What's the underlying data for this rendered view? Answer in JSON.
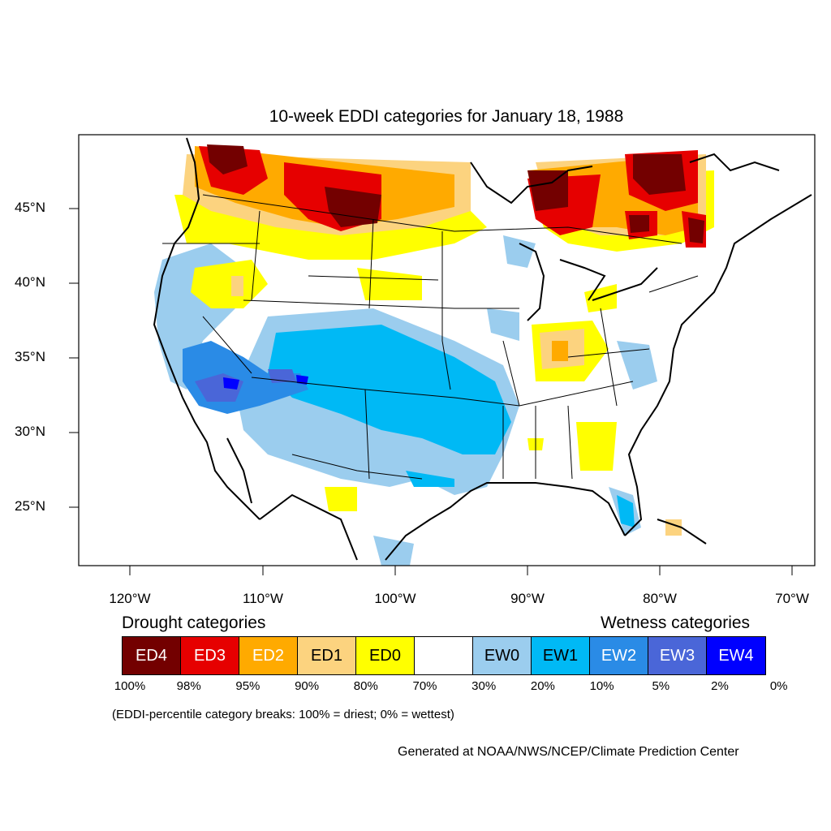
{
  "title": "10-week EDDI categories for January 18, 1988",
  "lat_labels": [
    "45°N",
    "40°N",
    "35°N",
    "30°N",
    "25°N"
  ],
  "lon_labels": [
    "120°W",
    "110°W",
    "100°W",
    "90°W",
    "80°W",
    "70°W"
  ],
  "legend": {
    "drought_heading": "Drought categories",
    "wetness_heading": "Wetness categories",
    "categories": [
      {
        "label": "ED4",
        "color": "#730000",
        "text_color": "#ffffff"
      },
      {
        "label": "ED3",
        "color": "#e60000",
        "text_color": "#ffffff"
      },
      {
        "label": "ED2",
        "color": "#ffaa00",
        "text_color": "#ffffff"
      },
      {
        "label": "ED1",
        "color": "#fcd37f",
        "text_color": "#000000"
      },
      {
        "label": "ED0",
        "color": "#ffff00",
        "text_color": "#000000"
      },
      {
        "label": "",
        "color": "#ffffff",
        "text_color": "#000000"
      },
      {
        "label": "EW0",
        "color": "#9bcdee",
        "text_color": "#000000"
      },
      {
        "label": "EW1",
        "color": "#00b9f5",
        "text_color": "#000000"
      },
      {
        "label": "EW2",
        "color": "#2a8be6",
        "text_color": "#ffffff"
      },
      {
        "label": "EW3",
        "color": "#4a66d8",
        "text_color": "#ffffff"
      },
      {
        "label": "EW4",
        "color": "#0000ff",
        "text_color": "#ffffff"
      }
    ],
    "breaks": [
      "100%",
      "98%",
      "95%",
      "90%",
      "80%",
      "70%",
      "30%",
      "20%",
      "10%",
      "5%",
      "2%",
      "0%"
    ],
    "note": "(EDDI-percentile category breaks: 100% = driest; 0% = wettest)"
  },
  "credit": "Generated at NOAA/NWS/NCEP/Climate Prediction Center"
}
